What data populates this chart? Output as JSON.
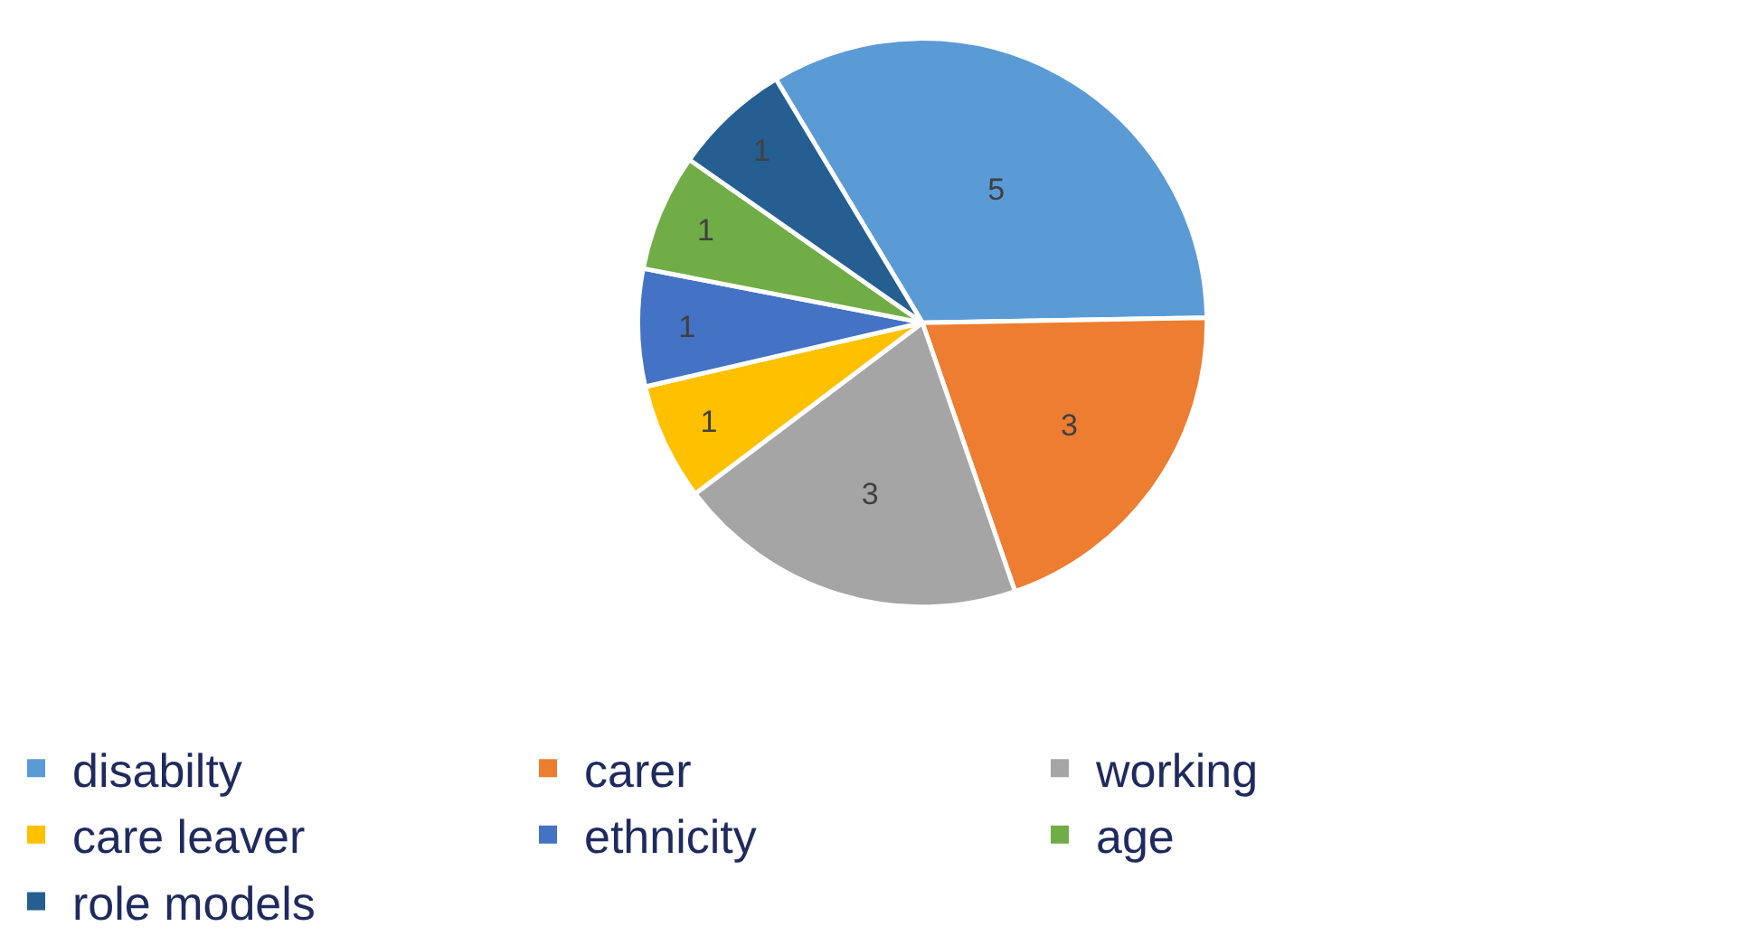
{
  "chart_data": {
    "type": "pie",
    "categories": [
      "disabilty",
      "carer",
      "working",
      "care leaver",
      "ethnicity",
      "age",
      "role models"
    ],
    "values": [
      5,
      3,
      3,
      1,
      1,
      1,
      1
    ],
    "colors": [
      "#5b9bd5",
      "#ed7d31",
      "#a5a5a5",
      "#ffc000",
      "#4472c4",
      "#70ad47",
      "#255e91"
    ],
    "data_labels": true,
    "legend": "bottom"
  }
}
